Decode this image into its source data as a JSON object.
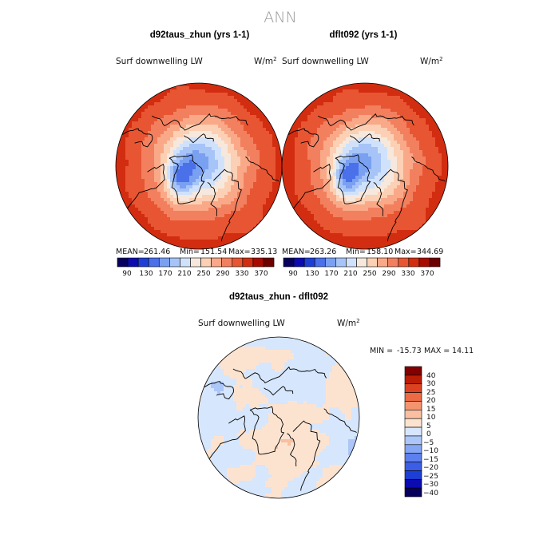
{
  "figure": {
    "title": "ANN"
  },
  "colors": {
    "abs_scale": [
      "#08005e",
      "#0b0bb0",
      "#1e3fd6",
      "#4a70ea",
      "#7aa0f2",
      "#a6c4f7",
      "#d0e2fb",
      "#f6e8dc",
      "#fcd0b4",
      "#f9a988",
      "#f2805f",
      "#e85532",
      "#d22d10",
      "#a80a00",
      "#6e0000"
    ],
    "diff_scale": [
      "#08005e",
      "#0b0bb0",
      "#1e3fd6",
      "#3c5ee6",
      "#5c80ee",
      "#84a6f4",
      "#acc6f8",
      "#d6e6fc",
      "#fce3d0",
      "#f9bfa0",
      "#f4946e",
      "#ec6a44",
      "#dd4220",
      "#bb1c05",
      "#820000"
    ]
  },
  "chart_data": [
    {
      "type": "heatmap",
      "projection": "polar-stereographic-north",
      "title": "d92taus_zhun (yrs 1-1)",
      "variable": "Surf downwelling LW",
      "units_base": "W/m",
      "units_exp": "2",
      "stats": {
        "mean_label": "MEAN=",
        "mean": "261.46",
        "min_label": "Min=",
        "min": "151.54",
        "max_label": "Max=",
        "max": "335.13"
      },
      "colorbar_labels": [
        "90",
        "130",
        "170",
        "210",
        "250",
        "290",
        "330",
        "370"
      ],
      "field": {
        "base": 300,
        "amp": 40,
        "arctic_low": 215,
        "greenland_low": 165
      }
    },
    {
      "type": "heatmap",
      "projection": "polar-stereographic-north",
      "title": "dflt092 (yrs 1-1)",
      "variable": "Surf downwelling LW",
      "units_base": "W/m",
      "units_exp": "2",
      "stats": {
        "mean_label": "MEAN=",
        "mean": "263.26",
        "min_label": "Min=",
        "min": "158.10",
        "max_label": "Max=",
        "max": "344.69"
      },
      "colorbar_labels": [
        "90",
        "130",
        "170",
        "210",
        "250",
        "290",
        "330",
        "370"
      ],
      "field": {
        "base": 302,
        "amp": 40,
        "arctic_low": 218,
        "greenland_low": 170
      }
    },
    {
      "type": "heatmap",
      "projection": "polar-stereographic-north",
      "title": "d92taus_zhun - dflt092",
      "variable": "Surf downwelling LW",
      "units_base": "W/m",
      "units_exp": "2",
      "stats": {
        "min_label": "MIN =",
        "min": "-15.73",
        "max_label": "MAX =",
        "max": "14.11"
      },
      "colorbar_labels": [
        "40",
        "30",
        "25",
        "20",
        "15",
        "10",
        "5",
        "0",
        "−5",
        "−10",
        "−15",
        "−20",
        "−25",
        "−30",
        "−40"
      ],
      "field": {
        "range": [
          -15.73,
          14.11
        ]
      }
    }
  ]
}
